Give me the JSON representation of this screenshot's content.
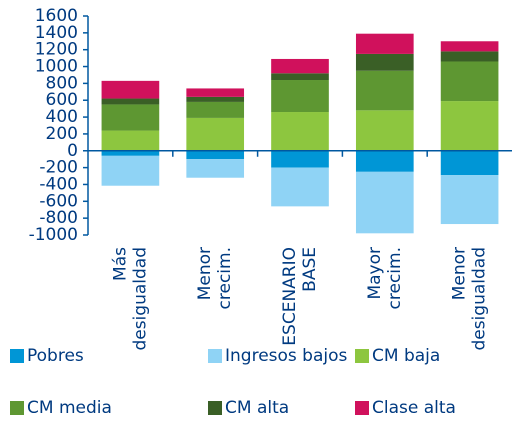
{
  "chart_data": {
    "type": "stacked_bar",
    "categories": [
      [
        "Más",
        "desigualdad"
      ],
      [
        "Menor",
        "crecim."
      ],
      [
        "ESCENARIO",
        "BASE"
      ],
      [
        "Mayor",
        "crecim."
      ],
      [
        "Menor",
        "desigualdad"
      ]
    ],
    "series": [
      {
        "name": "Pobres",
        "color": "#0096d6",
        "values": [
          -60,
          -100,
          -200,
          -250,
          -290
        ]
      },
      {
        "name": "Ingresos bajos",
        "color": "#8fd3f5",
        "values": [
          -355,
          -220,
          -460,
          -730,
          -580
        ]
      },
      {
        "name": "CM baja",
        "color": "#8dc63f",
        "values": [
          240,
          390,
          460,
          480,
          590
        ]
      },
      {
        "name": "CM media",
        "color": "#5e9732",
        "values": [
          310,
          190,
          380,
          470,
          470
        ]
      },
      {
        "name": "CM alta",
        "color": "#3a5f26",
        "values": [
          70,
          60,
          80,
          200,
          120
        ]
      },
      {
        "name": "Clase alta",
        "color": "#d0115c",
        "values": [
          210,
          100,
          170,
          240,
          120
        ]
      }
    ],
    "ylim": [
      -1000,
      1600
    ],
    "yticks": [
      -1000,
      -800,
      -600,
      -400,
      -200,
      0,
      200,
      400,
      600,
      800,
      1000,
      1200,
      1400,
      1600
    ],
    "legend": "bottom"
  }
}
